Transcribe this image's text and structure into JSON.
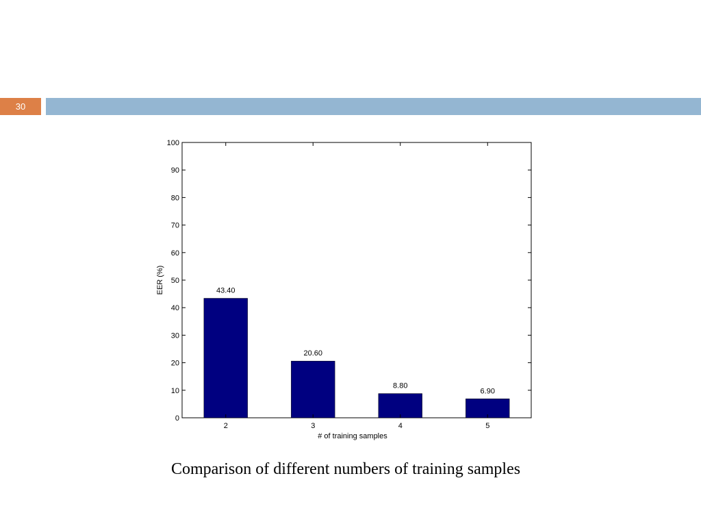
{
  "slide": {
    "number": "30"
  },
  "caption": "Comparison of different numbers of training samples",
  "colors": {
    "accent": "#dd8047",
    "header_bar": "#94b6d2",
    "bar": "#000080"
  },
  "chart_data": {
    "type": "bar",
    "categories": [
      "2",
      "3",
      "4",
      "5"
    ],
    "values": [
      43.4,
      20.6,
      8.8,
      6.9
    ],
    "data_labels": [
      "43.40",
      "20.60",
      "8.80",
      "6.90"
    ],
    "xlabel": "# of training samples",
    "ylabel": "EER (%)",
    "ylim": [
      0,
      100
    ],
    "yticks": [
      0,
      10,
      20,
      30,
      40,
      50,
      60,
      70,
      80,
      90,
      100
    ],
    "grid": false,
    "bar_color": "#000080"
  }
}
